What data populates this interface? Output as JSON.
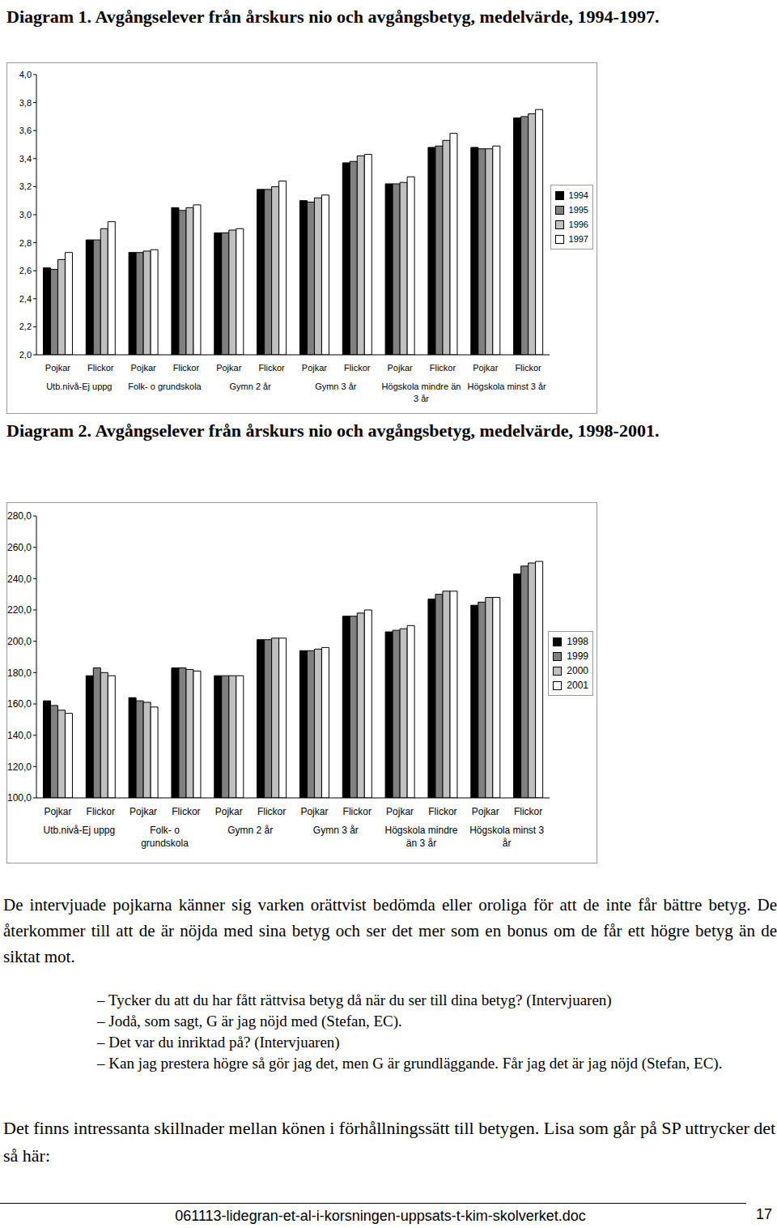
{
  "chart_data": [
    {
      "type": "bar",
      "title": "Diagram 1. Avgångselever från årskurs nio och avgångsbetyg, medelvärde, 1994-1997.",
      "categories": [
        "Pojkar",
        "Flickor",
        "Pojkar",
        "Flickor",
        "Pojkar",
        "Flickor",
        "Pojkar",
        "Flickor",
        "Pojkar",
        "Flickor",
        "Pojkar",
        "Flickor"
      ],
      "x_groups": [
        "Utb.nivå-Ej uppg",
        "Folk- o grundskola",
        "Gymn 2 år",
        "Gymn 3 år",
        "Högskola mindre än 3 år",
        "Högskola minst 3 år"
      ],
      "series": [
        {
          "name": "1994",
          "color": "#000000",
          "values": [
            2.62,
            2.82,
            2.73,
            3.05,
            2.87,
            3.18,
            3.1,
            3.37,
            3.22,
            3.48,
            3.48,
            3.69
          ]
        },
        {
          "name": "1995",
          "color": "#808080",
          "values": [
            2.61,
            2.82,
            2.73,
            3.03,
            2.87,
            3.18,
            3.09,
            3.38,
            3.22,
            3.49,
            3.47,
            3.7
          ]
        },
        {
          "name": "1996",
          "color": "#c0c0c0",
          "values": [
            2.68,
            2.9,
            2.74,
            3.05,
            2.89,
            3.2,
            3.12,
            3.42,
            3.23,
            3.53,
            3.47,
            3.72
          ]
        },
        {
          "name": "1997",
          "color": "#ffffff",
          "values": [
            2.73,
            2.95,
            2.75,
            3.07,
            2.9,
            3.24,
            3.14,
            3.43,
            3.27,
            3.58,
            3.49,
            3.75
          ]
        }
      ],
      "ylim": [
        2.0,
        4.0
      ],
      "yticks": [
        {
          "value": 2.0,
          "label": "2,0"
        },
        {
          "value": 2.2,
          "label": "2,2"
        },
        {
          "value": 2.4,
          "label": "2,4"
        },
        {
          "value": 2.6,
          "label": "2,6"
        },
        {
          "value": 2.8,
          "label": "2,8"
        },
        {
          "value": 3.0,
          "label": "3,0"
        },
        {
          "value": 3.2,
          "label": "3,2"
        },
        {
          "value": 3.4,
          "label": "3,4"
        },
        {
          "value": 3.6,
          "label": "3,6"
        },
        {
          "value": 3.8,
          "label": "3,8"
        },
        {
          "value": 4.0,
          "label": "4,0"
        }
      ],
      "grid": false,
      "legend": "right"
    },
    {
      "type": "bar",
      "title": "Diagram 2. Avgångselever från årskurs nio och avgångsbetyg, medelvärde, 1998-2001.",
      "categories": [
        "Pojkar",
        "Flickor",
        "Pojkar",
        "Flickor",
        "Pojkar",
        "Flickor",
        "Pojkar",
        "Flickor",
        "Pojkar",
        "Flickor",
        "Pojkar",
        "Flickor"
      ],
      "x_groups": [
        "Utb.nivå-Ej uppg",
        "Folk- o grundskola",
        "Gymn 2 år",
        "Gymn 3 år",
        "Högskola mindre än 3 år",
        "Högskola minst 3 år"
      ],
      "series": [
        {
          "name": "1998",
          "color": "#000000",
          "values": [
            162,
            178,
            164,
            183,
            178,
            201,
            194,
            216,
            206,
            227,
            223,
            243
          ]
        },
        {
          "name": "1999",
          "color": "#808080",
          "values": [
            159,
            183,
            162,
            183,
            178,
            201,
            194,
            216,
            207,
            230,
            225,
            248
          ]
        },
        {
          "name": "2000",
          "color": "#c0c0c0",
          "values": [
            156,
            180,
            161,
            182,
            178,
            202,
            195,
            218,
            208,
            232,
            228,
            250
          ]
        },
        {
          "name": "2001",
          "color": "#ffffff",
          "values": [
            154,
            178,
            158,
            181,
            178,
            202,
            196,
            220,
            210,
            232,
            228,
            251
          ]
        }
      ],
      "ylim": [
        100,
        280
      ],
      "yticks": [
        {
          "value": 100,
          "label": "100,0"
        },
        {
          "value": 120,
          "label": "120,0"
        },
        {
          "value": 140,
          "label": "140,0"
        },
        {
          "value": 160,
          "label": "160,0"
        },
        {
          "value": 180,
          "label": "180,0"
        },
        {
          "value": 200,
          "label": "200,0"
        },
        {
          "value": 220,
          "label": "220,0"
        },
        {
          "value": 240,
          "label": "240,0"
        },
        {
          "value": 260,
          "label": "260,0"
        },
        {
          "value": 280,
          "label": "280,0"
        }
      ],
      "grid": false,
      "legend": "right"
    }
  ],
  "document": {
    "paragraph_1": "De intervjuade pojkarna känner sig varken orättvist bedömda eller oroliga för att de inte får bättre betyg. De återkommer till att de är nöjda med sina betyg och ser det mer som en bonus om de får ett högre betyg än de siktat mot.",
    "dialogue": [
      "– Tycker du att du har fått rättvisa betyg då när du ser till dina betyg? (Intervjuaren)",
      "– Jodå, som sagt, G är jag nöjd med (Stefan, EC).",
      "– Det var du inriktad på? (Intervjuaren)",
      "– Kan jag prestera högre så gör jag det, men G är grundläggande. Får jag det är jag nöjd (Stefan, EC)."
    ],
    "paragraph_2": "Det finns intressanta skillnader mellan könen i förhållningssätt till betygen. Lisa som går på SP uttrycker det så här:",
    "footer": {
      "file": "061113-lidegran-et-al-i-korsningen-uppsats-t-kim-skolverket.doc",
      "page": 17
    }
  }
}
